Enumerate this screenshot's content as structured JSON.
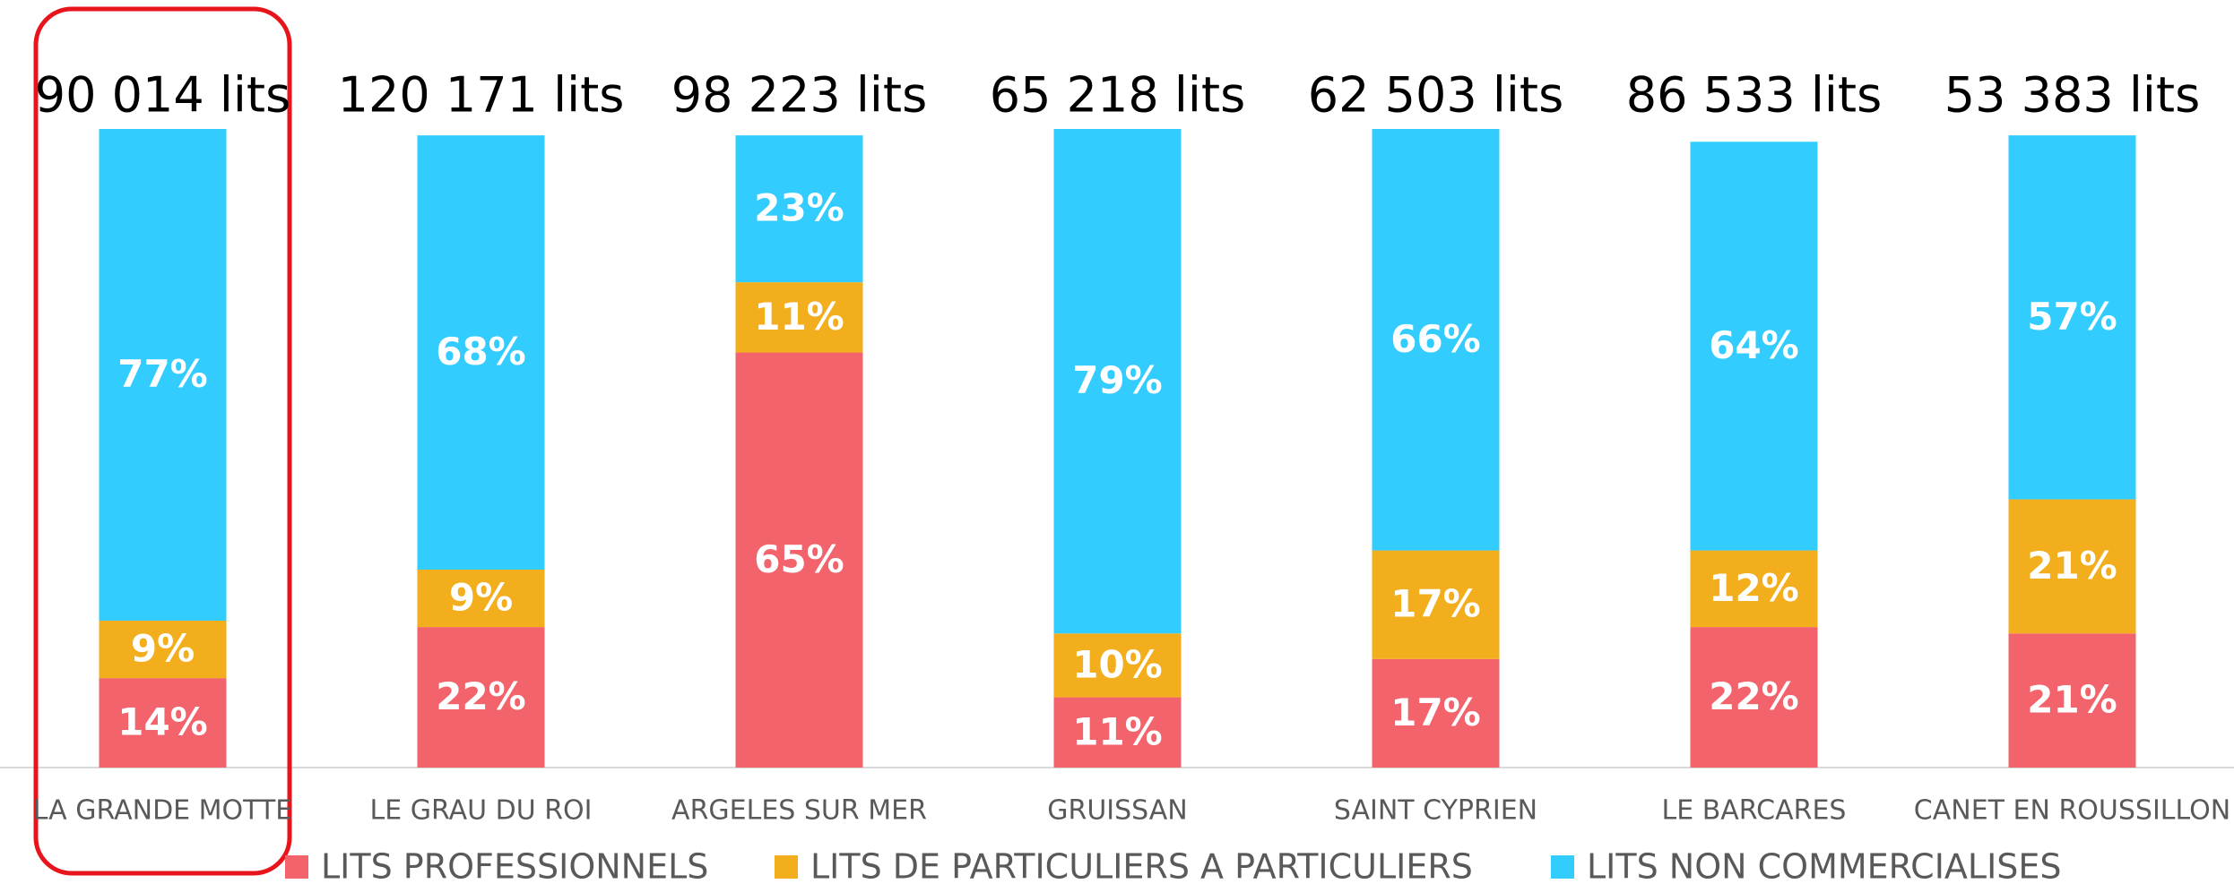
{
  "chart_data": {
    "type": "stacked_bar",
    "categories": [
      "LA GRANDE MOTTE",
      "LE GRAU DU ROI",
      "ARGELES SUR MER",
      "GRUISSAN",
      "SAINT CYPRIEN",
      "LE BARCARES",
      "CANET EN ROUSSILLON"
    ],
    "totals": [
      "90 014 lits",
      "120 171 lits",
      "98 223 lits",
      "65 218 lits",
      "62 503 lits",
      "86 533 lits",
      "53 383 lits"
    ],
    "series": [
      {
        "name": "LITS PROFESSIONNELS",
        "color": "#f2636b",
        "values": [
          14,
          22,
          65,
          11,
          17,
          22,
          21
        ],
        "value_labels": [
          "14%",
          "22%",
          "65%",
          "11%",
          "17%",
          "22%",
          "21%"
        ]
      },
      {
        "name": "LITS DE PARTICULIERS A PARTICULIERS",
        "color": "#f2ae1c",
        "values": [
          9,
          9,
          11,
          10,
          17,
          12,
          21
        ],
        "value_labels": [
          "9%",
          "9%",
          "11%",
          "10%",
          "17%",
          "12%",
          "21%"
        ]
      },
      {
        "name": "LITS NON COMMERCIALISES",
        "color": "#33ccff",
        "values": [
          77,
          68,
          23,
          79,
          66,
          64,
          57
        ],
        "value_labels": [
          "77%",
          "68%",
          "23%",
          "79%",
          "66%",
          "64%",
          "57%"
        ]
      }
    ]
  }
}
